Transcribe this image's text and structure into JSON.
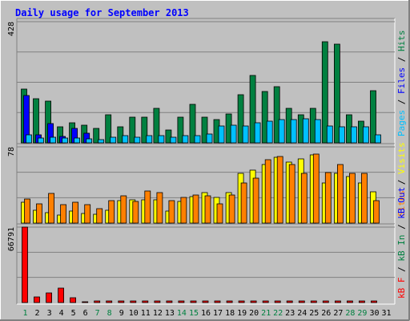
{
  "title": "Daily usage for September 2013",
  "colors": {
    "background": "#C0C0C0",
    "frame_light": "#FFFFFF",
    "frame_dark": "#808080",
    "panel": "#C0C0C0",
    "grid": "#808080",
    "title": "#0000FF",
    "hits": "#008040",
    "files": "#0000FF",
    "pages": "#00C0FF",
    "visits": "#FFFF00",
    "sites": "#FF8000",
    "kbin": "#008040",
    "kbout": "#0000FF",
    "kbf": "#FF0000",
    "weekday_label": "#000000",
    "weekend_label": "#008040"
  },
  "legend_top": [
    {
      "text": "Pages",
      "color_key": "pages"
    },
    {
      "text": " / ",
      "color_key": "weekday_label"
    },
    {
      "text": "Files",
      "color_key": "files"
    },
    {
      "text": " / ",
      "color_key": "weekday_label"
    },
    {
      "text": "Hits",
      "color_key": "hits"
    }
  ],
  "legend_mid": [
    {
      "text": "Sites",
      "color_key": "sites"
    },
    {
      "text": " / ",
      "color_key": "weekday_label"
    },
    {
      "text": "Visits",
      "color_key": "visits"
    }
  ],
  "legend_bot": [
    {
      "text": "kB F",
      "color_key": "kbf"
    },
    {
      "text": " / ",
      "color_key": "weekday_label"
    },
    {
      "text": "kB In",
      "color_key": "kbin"
    },
    {
      "text": " / ",
      "color_key": "weekday_label"
    },
    {
      "text": "kB Out",
      "color_key": "kbout"
    }
  ],
  "chart_data": [
    {
      "type": "bar",
      "panel": "top",
      "ymax_label": "428",
      "ylim": [
        0,
        428
      ],
      "categories": [
        "1",
        "2",
        "3",
        "4",
        "5",
        "6",
        "7",
        "8",
        "9",
        "10",
        "11",
        "12",
        "13",
        "14",
        "15",
        "16",
        "17",
        "18",
        "19",
        "20",
        "21",
        "22",
        "23",
        "24",
        "25",
        "26",
        "27",
        "28",
        "29",
        "30",
        "31"
      ],
      "series": [
        {
          "name": "Hits",
          "values": [
            189,
            157,
            146,
            58,
            71,
            63,
            52,
            98,
            56,
            92,
            90,
            121,
            44,
            91,
            135,
            90,
            82,
            101,
            170,
            239,
            180,
            197,
            122,
            99,
            123,
            356,
            349,
            98,
            77,
            185,
            0
          ]
        },
        {
          "name": "Files",
          "values": [
            167,
            28,
            69,
            24,
            50,
            34,
            0,
            0,
            0,
            0,
            0,
            0,
            0,
            0,
            0,
            0,
            0,
            0,
            0,
            0,
            0,
            0,
            0,
            0,
            0,
            0,
            0,
            0,
            0,
            0,
            0
          ]
        },
        {
          "name": "Pages",
          "values": [
            28,
            17,
            21,
            16,
            17,
            14,
            10,
            21,
            26,
            21,
            25,
            26,
            20,
            25,
            26,
            30,
            60,
            62,
            60,
            71,
            77,
            83,
            83,
            85,
            83,
            60,
            56,
            57,
            57,
            29,
            0
          ]
        }
      ]
    },
    {
      "type": "bar",
      "panel": "middle",
      "ymax_label": "78",
      "ylim": [
        0,
        78
      ],
      "categories": [
        "1",
        "2",
        "3",
        "4",
        "5",
        "6",
        "7",
        "8",
        "9",
        "10",
        "11",
        "12",
        "13",
        "14",
        "15",
        "16",
        "17",
        "18",
        "19",
        "20",
        "21",
        "22",
        "23",
        "24",
        "25",
        "26",
        "27",
        "28",
        "29",
        "30",
        "31"
      ],
      "series": [
        {
          "name": "Visits",
          "values": [
            21,
            13,
            11,
            8,
            12,
            10,
            9,
            13,
            23,
            24,
            24,
            24,
            12,
            22,
            27,
            31,
            26,
            31,
            51,
            54,
            60,
            67,
            62,
            66,
            70,
            41,
            51,
            48,
            41,
            32,
            0
          ]
        },
        {
          "name": "Sites",
          "values": [
            25,
            20,
            30,
            19,
            21,
            19,
            15,
            23,
            28,
            22,
            33,
            31,
            23,
            26,
            29,
            28,
            20,
            29,
            41,
            46,
            65,
            68,
            60,
            51,
            71,
            52,
            60,
            51,
            51,
            23,
            0
          ]
        }
      ]
    },
    {
      "type": "bar",
      "panel": "bottom",
      "ymax_label": "66791",
      "ylim": [
        0,
        66791
      ],
      "categories": [
        "1",
        "2",
        "3",
        "4",
        "5",
        "6",
        "7",
        "8",
        "9",
        "10",
        "11",
        "12",
        "13",
        "14",
        "15",
        "16",
        "17",
        "18",
        "19",
        "20",
        "21",
        "22",
        "23",
        "24",
        "25",
        "26",
        "27",
        "28",
        "29",
        "30",
        "31"
      ],
      "series": [
        {
          "name": "kB F",
          "values": [
            66791,
            5000,
            8500,
            12500,
            4000,
            1000,
            500,
            500,
            500,
            500,
            500,
            500,
            500,
            500,
            500,
            500,
            500,
            500,
            500,
            500,
            500,
            500,
            500,
            500,
            500,
            500,
            500,
            500,
            500,
            500,
            0
          ]
        }
      ]
    }
  ],
  "weekend_days": [
    1,
    7,
    8,
    14,
    15,
    21,
    22,
    28,
    29
  ]
}
